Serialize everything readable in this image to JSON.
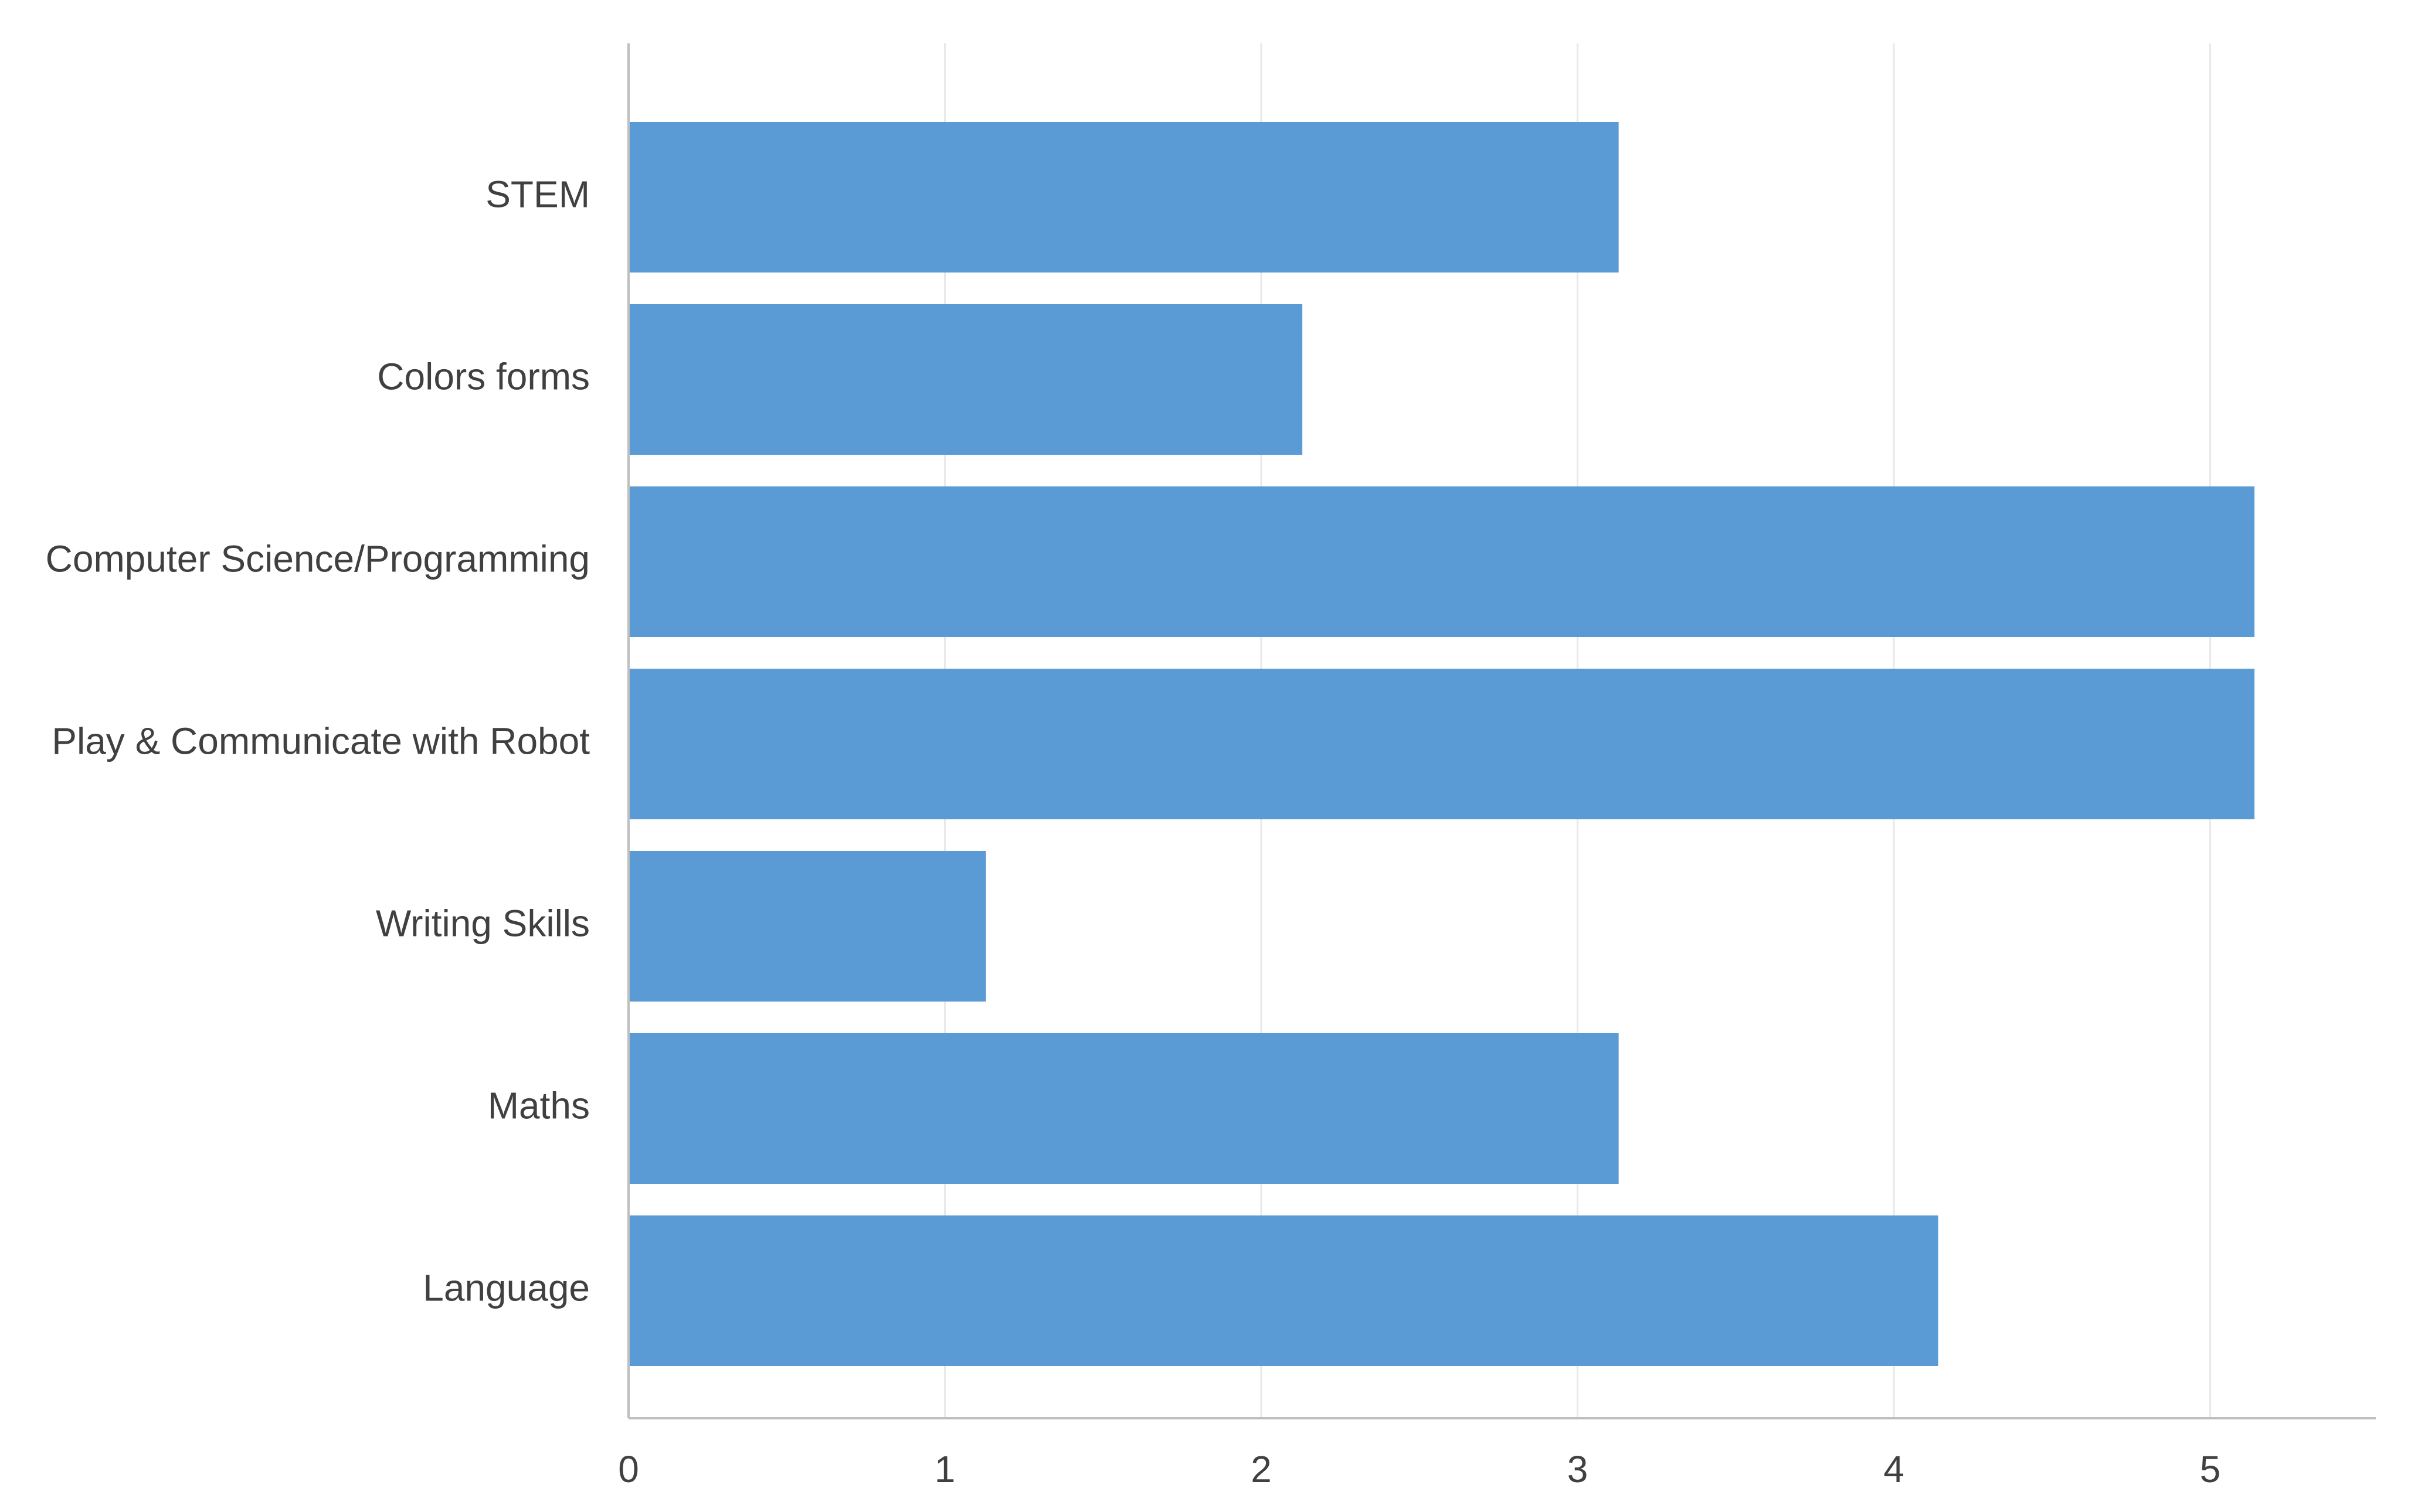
{
  "chart_data": {
    "type": "bar",
    "orientation": "horizontal",
    "categories": [
      "STEM",
      "Colors forms",
      "Computer Science/Programming",
      "Play & Communicate with Robot",
      "Writing Skills",
      "Maths",
      "Language"
    ],
    "values": [
      3.13,
      2.13,
      5.14,
      5.14,
      1.13,
      3.13,
      4.14
    ],
    "xlim": [
      0,
      5.5
    ],
    "xticks": [
      0,
      1,
      2,
      3,
      4,
      5
    ],
    "title": "",
    "xlabel": "",
    "ylabel": "",
    "grid": "vertical",
    "legend": "none",
    "colors": {
      "bar": "#5B9BD5",
      "grid": "#E8E8E8",
      "axis": "#BFBFBF",
      "text": "#404040"
    }
  }
}
